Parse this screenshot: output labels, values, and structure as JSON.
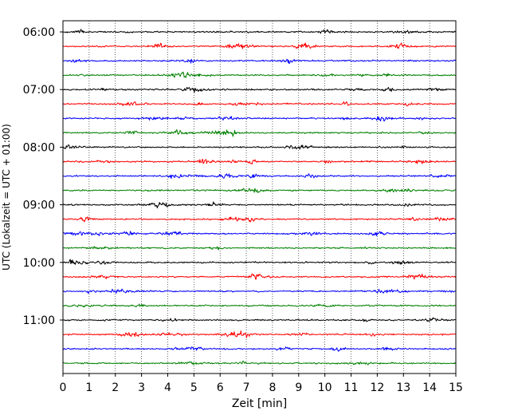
{
  "chart_data": {
    "type": "line",
    "title": "",
    "xlabel": "Zeit  [min]",
    "ylabel": "UTC (Lokalzeit = UTC + 01:00)",
    "xlim": [
      0,
      15
    ],
    "x_ticks": [
      "0",
      "1",
      "2",
      "3",
      "4",
      "5",
      "6",
      "7",
      "8",
      "9",
      "10",
      "11",
      "12",
      "13",
      "14",
      "15"
    ],
    "y_tick_labels": [
      "06:00",
      "07:00",
      "08:00",
      "09:00",
      "10:00",
      "11:00"
    ],
    "grid": "vertical-dotted",
    "trace_interval_min": 15,
    "trace_count": 24,
    "trace_colors": [
      "#000000",
      "#ff0000",
      "#0000ff",
      "#008000"
    ],
    "legend": "none"
  }
}
